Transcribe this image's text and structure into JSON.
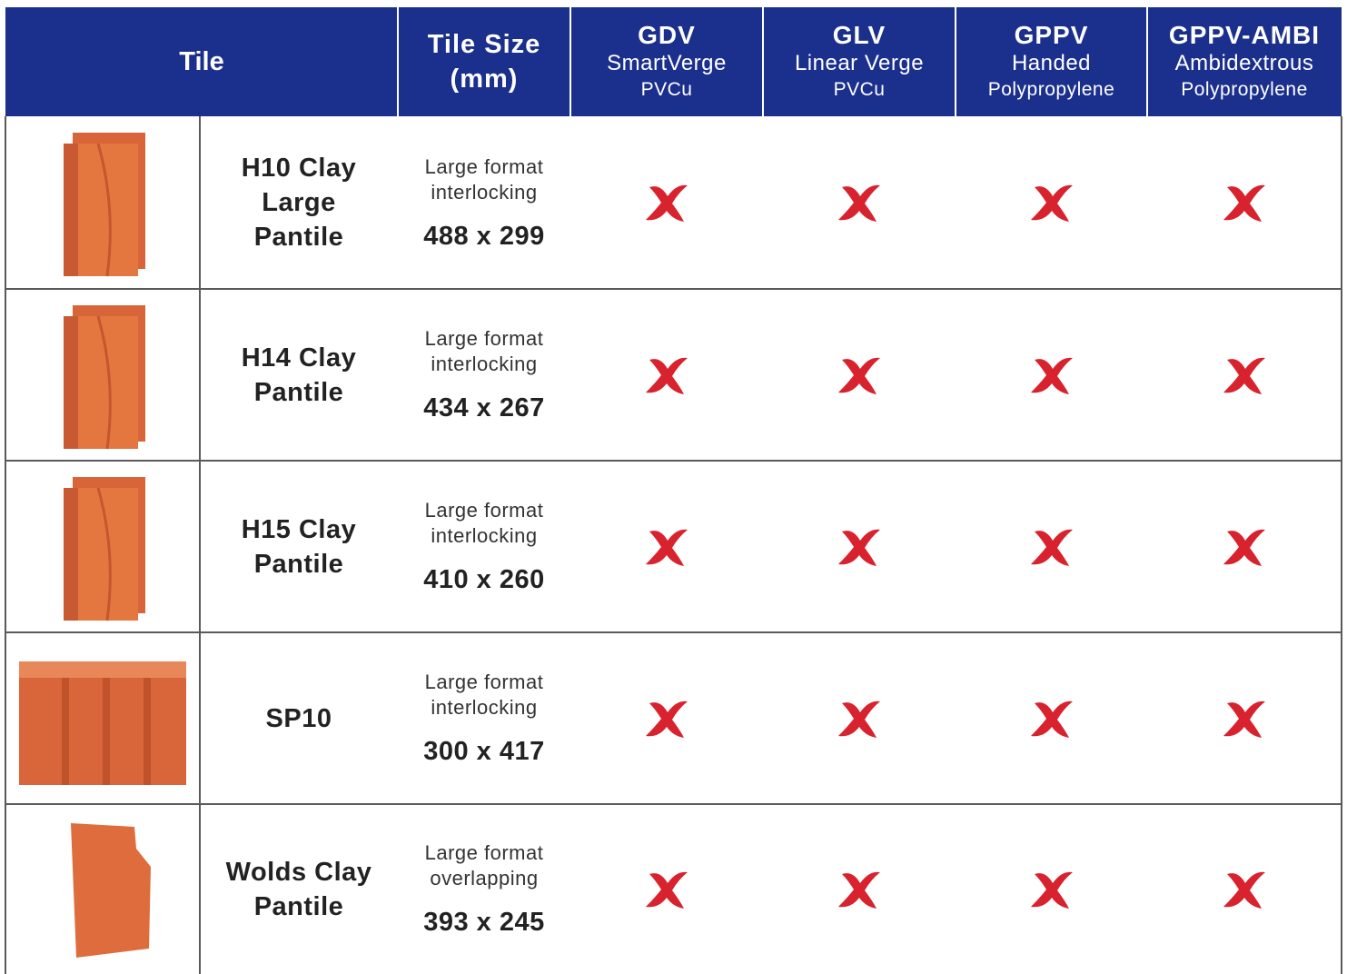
{
  "header": {
    "tile": "Tile",
    "size": [
      "Tile Size",
      "(mm)"
    ],
    "products": [
      {
        "code": "GDV",
        "lines": [
          "SmartVerge",
          "PVCu"
        ]
      },
      {
        "code": "GLV",
        "lines": [
          "Linear Verge",
          "PVCu"
        ]
      },
      {
        "code": "GPPV",
        "lines": [
          "Handed",
          "Polypropylene"
        ]
      },
      {
        "code": "GPPV-AMBI",
        "lines": [
          "Ambidextrous",
          "Polypropylene"
        ]
      }
    ]
  },
  "rows": [
    {
      "name": [
        "H10 Clay",
        "Large",
        "Pantile"
      ],
      "format": [
        "Large format",
        "interlocking"
      ],
      "dimensions": "488 x 299"
    },
    {
      "name": [
        "H14 Clay",
        "Pantile"
      ],
      "format": [
        "Large format",
        "interlocking"
      ],
      "dimensions": "434 x 267"
    },
    {
      "name": [
        "H15 Clay",
        "Pantile"
      ],
      "format": [
        "Large format",
        "interlocking"
      ],
      "dimensions": "410 x 260"
    },
    {
      "name": [
        "SP10"
      ],
      "format": [
        "Large format",
        "interlocking"
      ],
      "dimensions": "300 x 417"
    },
    {
      "name": [
        "Wolds Clay",
        "Pantile"
      ],
      "format": [
        "Large format",
        "overlapping"
      ],
      "dimensions": "393 x 245"
    }
  ]
}
